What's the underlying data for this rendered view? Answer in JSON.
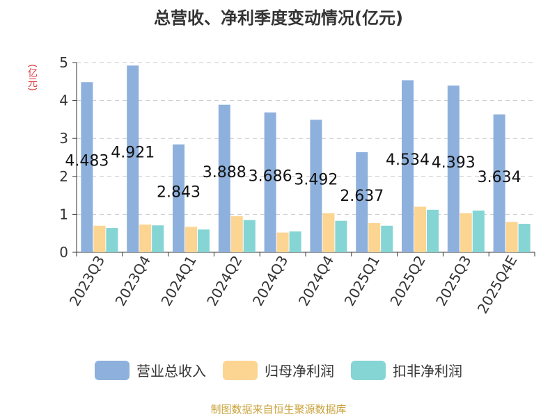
{
  "title": "总营收、净利季度变动情况(亿元)",
  "unit_label": "(亿元)",
  "source": "制图数据来自恒生聚源数据库",
  "chart_data": {
    "type": "bar",
    "title": "总营收、净利季度变动情况(亿元)",
    "ylabel": "(亿元)",
    "xlabel": "",
    "ylim": [
      0,
      5
    ],
    "yticks": [
      "0",
      "1",
      "2",
      "3",
      "4",
      "5"
    ],
    "grid": true,
    "legend_position": "bottom",
    "categories": [
      "2023Q3",
      "2023Q4",
      "2024Q1",
      "2024Q2",
      "2024Q3",
      "2024Q4",
      "2025Q1",
      "2025Q2",
      "2025Q3",
      "2025Q4E"
    ],
    "series": [
      {
        "name": "营业总收入",
        "color": "#8eb0dc",
        "values": [
          4.483,
          4.921,
          2.843,
          3.888,
          3.686,
          3.492,
          2.637,
          4.534,
          4.393,
          3.634
        ],
        "labels": [
          "4.483",
          "4.921",
          "2.843",
          "3.888",
          "3.686",
          "3.492",
          "2.637",
          "4.534",
          "4.393",
          "3.634"
        ]
      },
      {
        "name": "归母净利润",
        "color": "#fcd592",
        "values": [
          0.7,
          0.73,
          0.67,
          0.95,
          0.52,
          1.03,
          0.77,
          1.2,
          1.03,
          0.8
        ]
      },
      {
        "name": "扣非净利润",
        "color": "#85d5d5",
        "values": [
          0.64,
          0.71,
          0.6,
          0.85,
          0.55,
          0.83,
          0.7,
          1.12,
          1.1,
          0.75
        ]
      }
    ]
  }
}
